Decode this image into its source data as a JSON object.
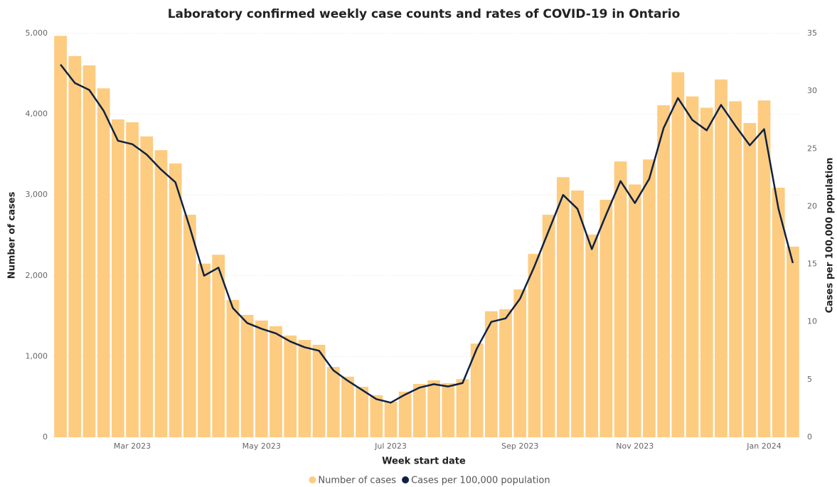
{
  "chart_data": {
    "type": "bar-line",
    "title": "Laboratory confirmed weekly case counts and rates of COVID-19 in Ontario",
    "x_label": "Week start date",
    "y_label": "Number of cases",
    "y2_label": "Cases per 100,000 population",
    "categories": [
      null,
      null,
      null,
      null,
      null,
      "Mar 2023",
      null,
      null,
      null,
      null,
      null,
      null,
      null,
      null,
      "May 2023",
      null,
      null,
      null,
      null,
      null,
      null,
      null,
      null,
      "Jul 2023",
      null,
      null,
      null,
      null,
      null,
      null,
      null,
      null,
      "Sep 2023",
      null,
      null,
      null,
      null,
      null,
      null,
      null,
      "Nov 2023",
      null,
      null,
      null,
      null,
      null,
      null,
      null,
      null,
      "Jan 2024",
      null,
      null
    ],
    "series": [
      {
        "name": "Number of cases",
        "color": "#fdcc80",
        "kind": "bar",
        "values": [
          4970,
          4720,
          4605,
          4320,
          3935,
          3900,
          3725,
          3555,
          3390,
          2755,
          2150,
          2260,
          1700,
          1515,
          1445,
          1375,
          1260,
          1205,
          1145,
          870,
          750,
          625,
          520,
          440,
          565,
          660,
          705,
          670,
          720,
          1160,
          1560,
          1585,
          1830,
          2270,
          2755,
          3220,
          3055,
          2510,
          2940,
          3415,
          3130,
          3440,
          4110,
          4520,
          4220,
          4080,
          4430,
          4160,
          3890,
          4170,
          3090,
          2360
        ]
      },
      {
        "name": "Cases per 100,000 population",
        "color": "#0f2143",
        "kind": "line",
        "axis": "y2",
        "values": [
          32.3,
          30.7,
          30.1,
          28.3,
          25.7,
          25.4,
          24.5,
          23.2,
          22.1,
          18.2,
          14.0,
          14.7,
          11.2,
          9.9,
          9.4,
          9.0,
          8.3,
          7.8,
          7.5,
          5.8,
          4.9,
          4.1,
          3.3,
          3.0,
          3.7,
          4.3,
          4.6,
          4.4,
          4.7,
          7.7,
          10.0,
          10.3,
          12.0,
          14.8,
          17.9,
          21.0,
          19.8,
          16.3,
          19.3,
          22.2,
          20.3,
          22.4,
          26.8,
          29.4,
          27.5,
          26.6,
          28.8,
          27.0,
          25.3,
          26.7,
          19.8,
          15.1
        ]
      }
    ],
    "ylim": [
      0,
      5000
    ],
    "yticks": [
      0,
      {
        "value": 1000,
        "label": "1,000"
      },
      {
        "value": 2000,
        "label": "2,000"
      },
      {
        "value": 3000,
        "label": "3,000"
      },
      {
        "value": 4000,
        "label": "4,000"
      },
      {
        "value": 5000,
        "label": "5,000"
      }
    ],
    "y2lim": [
      0,
      35
    ],
    "y2ticks": [
      0,
      5,
      10,
      15,
      20,
      25,
      30,
      35
    ],
    "grid": true,
    "legend": "bottom"
  }
}
